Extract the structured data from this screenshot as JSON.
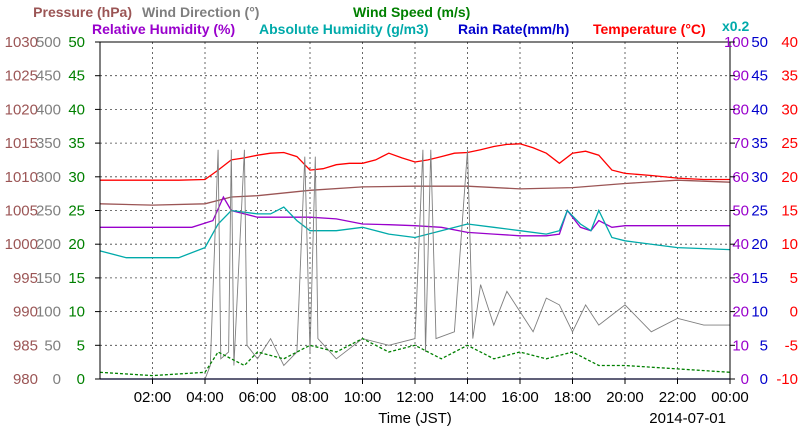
{
  "chart_data": {
    "type": "line",
    "date_label": "2014-07-01",
    "xlabel": "Time (JST)",
    "x_ticks": [
      "02:00",
      "04:00",
      "06:00",
      "08:00",
      "10:00",
      "12:00",
      "14:00",
      "16:00",
      "18:00",
      "20:00",
      "22:00",
      "00:00"
    ],
    "x_range_hours": [
      0,
      24
    ],
    "extra_note": "x0.2",
    "axes": [
      {
        "name": "Pressure (hPa)",
        "color": "#9b5555",
        "range": [
          980,
          1030
        ],
        "ticks": [
          "1030",
          "1025",
          "1020",
          "1015",
          "1010",
          "1005",
          "1000",
          "995",
          "990",
          "985",
          "980"
        ]
      },
      {
        "name": "Wind Direction (°)",
        "color": "#7f7f7f",
        "range": [
          0,
          500
        ],
        "ticks": [
          "500",
          "450",
          "400",
          "350",
          "300",
          "250",
          "200",
          "150",
          "100",
          "50",
          "0"
        ]
      },
      {
        "name": "Wind Speed (m/s)",
        "color": "#008000",
        "range": [
          0,
          50
        ],
        "ticks": [
          "50",
          "45",
          "40",
          "35",
          "30",
          "25",
          "20",
          "15",
          "10",
          "5",
          "0"
        ]
      },
      {
        "name": "Relative Humidity (%)",
        "color": "#9900cc",
        "range": [
          0,
          100
        ],
        "ticks": [
          "100",
          "90",
          "80",
          "70",
          "60",
          "50",
          "40",
          "30",
          "20",
          "10",
          "0"
        ]
      },
      {
        "name": "Absolute Humidity (g/m3)",
        "color": "#00aaaa",
        "range": [
          0,
          50
        ]
      },
      {
        "name": "Rain Rate(mm/h)",
        "color": "#0000cc",
        "range": [
          0,
          50
        ],
        "ticks": [
          "50",
          "45",
          "40",
          "35",
          "30",
          "25",
          "20",
          "15",
          "10",
          "5",
          "0"
        ]
      },
      {
        "name": "Temperature (°C)",
        "color": "#ff0000",
        "range": [
          -10,
          40
        ],
        "ticks": [
          "40",
          "35",
          "30",
          "25",
          "20",
          "15",
          "10",
          "5",
          "0",
          "-5",
          "-10"
        ]
      }
    ],
    "series": [
      {
        "name": "Temperature (°C)",
        "color": "#ff0000",
        "axis": 6,
        "points": [
          [
            0,
            19.5
          ],
          [
            1,
            19.5
          ],
          [
            2,
            19.5
          ],
          [
            3,
            19.5
          ],
          [
            4,
            19.6
          ],
          [
            4.5,
            21
          ],
          [
            5,
            22.5
          ],
          [
            5.5,
            22.8
          ],
          [
            6,
            23.2
          ],
          [
            6.5,
            23.5
          ],
          [
            7,
            23.6
          ],
          [
            7.5,
            23
          ],
          [
            8,
            21
          ],
          [
            8.5,
            21.2
          ],
          [
            9,
            21.8
          ],
          [
            9.5,
            22
          ],
          [
            10,
            22
          ],
          [
            10.5,
            22.5
          ],
          [
            11,
            23.5
          ],
          [
            11.5,
            22.8
          ],
          [
            12,
            22.2
          ],
          [
            12.5,
            22.5
          ],
          [
            13,
            23
          ],
          [
            13.5,
            23.5
          ],
          [
            14,
            23.6
          ],
          [
            14.5,
            24
          ],
          [
            15,
            24.5
          ],
          [
            15.5,
            24.8
          ],
          [
            16,
            24.9
          ],
          [
            16.5,
            24.3
          ],
          [
            17,
            23.5
          ],
          [
            17.5,
            22
          ],
          [
            18,
            23.5
          ],
          [
            18.5,
            23.8
          ],
          [
            19,
            23.2
          ],
          [
            19.5,
            21
          ],
          [
            20,
            20.5
          ],
          [
            21,
            20.2
          ],
          [
            22,
            19.8
          ],
          [
            23,
            19.6
          ],
          [
            24,
            19.6
          ]
        ]
      },
      {
        "name": "Pressure (hPa)",
        "color": "#9b5555",
        "axis": 0,
        "points": [
          [
            0,
            1006
          ],
          [
            2,
            1005.8
          ],
          [
            4,
            1006
          ],
          [
            5,
            1007
          ],
          [
            6,
            1007.2
          ],
          [
            8,
            1008
          ],
          [
            10,
            1008.5
          ],
          [
            12,
            1008.6
          ],
          [
            14,
            1008.6
          ],
          [
            16,
            1008.2
          ],
          [
            18,
            1008.4
          ],
          [
            20,
            1009
          ],
          [
            22,
            1009.5
          ],
          [
            24,
            1009.2
          ]
        ]
      },
      {
        "name": "Relative Humidity (%)",
        "color": "#9900cc",
        "axis": 3,
        "points": [
          [
            0,
            45
          ],
          [
            3.5,
            45
          ],
          [
            4.3,
            47
          ],
          [
            4.7,
            54
          ],
          [
            5,
            50
          ],
          [
            6,
            48
          ],
          [
            7,
            48
          ],
          [
            8,
            48
          ],
          [
            9,
            47.5
          ],
          [
            10,
            46
          ],
          [
            11,
            45.8
          ],
          [
            12,
            45.5
          ],
          [
            13,
            45
          ],
          [
            14,
            43.5
          ],
          [
            15,
            43
          ],
          [
            16,
            42.5
          ],
          [
            17,
            42.5
          ],
          [
            17.5,
            43
          ],
          [
            17.8,
            50
          ],
          [
            18.3,
            45
          ],
          [
            18.7,
            44
          ],
          [
            19,
            47
          ],
          [
            19.5,
            45
          ],
          [
            20,
            45.5
          ],
          [
            21,
            45.5
          ],
          [
            22,
            45.5
          ],
          [
            23,
            45.5
          ],
          [
            24,
            45.5
          ]
        ]
      },
      {
        "name": "Absolute Humidity (g/m3)",
        "color": "#00aaaa",
        "axis": 4,
        "points": [
          [
            0,
            19
          ],
          [
            1,
            18
          ],
          [
            3,
            18
          ],
          [
            4,
            19.5
          ],
          [
            4.5,
            23
          ],
          [
            5,
            25
          ],
          [
            6,
            24.5
          ],
          [
            6.5,
            24.5
          ],
          [
            7,
            25.5
          ],
          [
            7.5,
            23.5
          ],
          [
            8,
            22
          ],
          [
            9,
            22
          ],
          [
            10,
            22.5
          ],
          [
            11,
            21.5
          ],
          [
            12,
            21
          ],
          [
            13,
            22
          ],
          [
            14,
            23
          ],
          [
            15,
            22.5
          ],
          [
            16,
            22
          ],
          [
            17,
            21.5
          ],
          [
            17.5,
            22
          ],
          [
            17.8,
            25
          ],
          [
            18.3,
            23
          ],
          [
            18.7,
            22
          ],
          [
            19,
            25
          ],
          [
            19.5,
            21
          ],
          [
            20,
            20.5
          ],
          [
            22,
            19.5
          ],
          [
            24,
            19.2
          ]
        ]
      },
      {
        "name": "Wind Direction (°)",
        "color": "#7f7f7f",
        "axis": 1,
        "points": [
          [
            0,
            0
          ],
          [
            4,
            0
          ],
          [
            4.2,
            20
          ],
          [
            4.5,
            340
          ],
          [
            4.6,
            30
          ],
          [
            4.9,
            40
          ],
          [
            5,
            340
          ],
          [
            5.1,
            20
          ],
          [
            5.5,
            340
          ],
          [
            5.6,
            50
          ],
          [
            6,
            30
          ],
          [
            6.5,
            60
          ],
          [
            7,
            20
          ],
          [
            7.5,
            40
          ],
          [
            7.8,
            330
          ],
          [
            8,
            40
          ],
          [
            8.2,
            330
          ],
          [
            8.3,
            60
          ],
          [
            9,
            30
          ],
          [
            10,
            60
          ],
          [
            11,
            50
          ],
          [
            12,
            60
          ],
          [
            12.3,
            340
          ],
          [
            12.4,
            40
          ],
          [
            12.6,
            340
          ],
          [
            12.8,
            60
          ],
          [
            13.5,
            70
          ],
          [
            14,
            340
          ],
          [
            14.2,
            60
          ],
          [
            14.5,
            140
          ],
          [
            15,
            80
          ],
          [
            15.5,
            130
          ],
          [
            16,
            100
          ],
          [
            16.5,
            70
          ],
          [
            17,
            120
          ],
          [
            17.5,
            110
          ],
          [
            18,
            70
          ],
          [
            18.5,
            110
          ],
          [
            19,
            80
          ],
          [
            20,
            110
          ],
          [
            21,
            70
          ],
          [
            22,
            90
          ],
          [
            23,
            80
          ],
          [
            24,
            80
          ]
        ]
      },
      {
        "name": "Wind Speed (m/s)",
        "color": "#008000",
        "axis": 2,
        "points": [
          [
            0,
            1
          ],
          [
            2,
            0.5
          ],
          [
            4,
            1
          ],
          [
            4.5,
            4
          ],
          [
            5,
            3
          ],
          [
            5.5,
            2
          ],
          [
            6,
            4
          ],
          [
            7,
            3
          ],
          [
            8,
            5
          ],
          [
            9,
            4
          ],
          [
            10,
            6
          ],
          [
            11,
            4
          ],
          [
            12,
            5
          ],
          [
            13,
            3
          ],
          [
            14,
            5
          ],
          [
            15,
            3
          ],
          [
            16,
            4
          ],
          [
            17,
            3
          ],
          [
            18,
            4
          ],
          [
            19,
            2
          ],
          [
            20,
            2
          ],
          [
            22,
            1.5
          ],
          [
            24,
            1
          ]
        ]
      },
      {
        "name": "Rain Rate(mm/h)",
        "color": "#0000cc",
        "axis": 5,
        "points": [
          [
            0,
            0
          ],
          [
            24,
            0
          ]
        ]
      }
    ]
  }
}
